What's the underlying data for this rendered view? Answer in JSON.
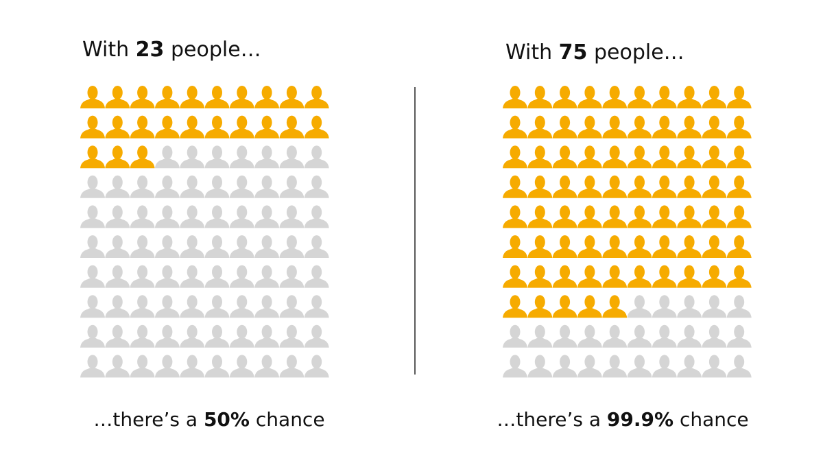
{
  "panels": [
    {
      "title": {
        "before": "With",
        "count": 23,
        "after": "people…"
      },
      "caption": {
        "before": "…there’s a",
        "chance": "50%",
        "after": "chance"
      }
    },
    {
      "title": {
        "before": "With",
        "count": 75,
        "after": "people…"
      },
      "caption": {
        "before": "…there’s a",
        "chance": "99.9%",
        "after": "chance"
      }
    }
  ]
}
